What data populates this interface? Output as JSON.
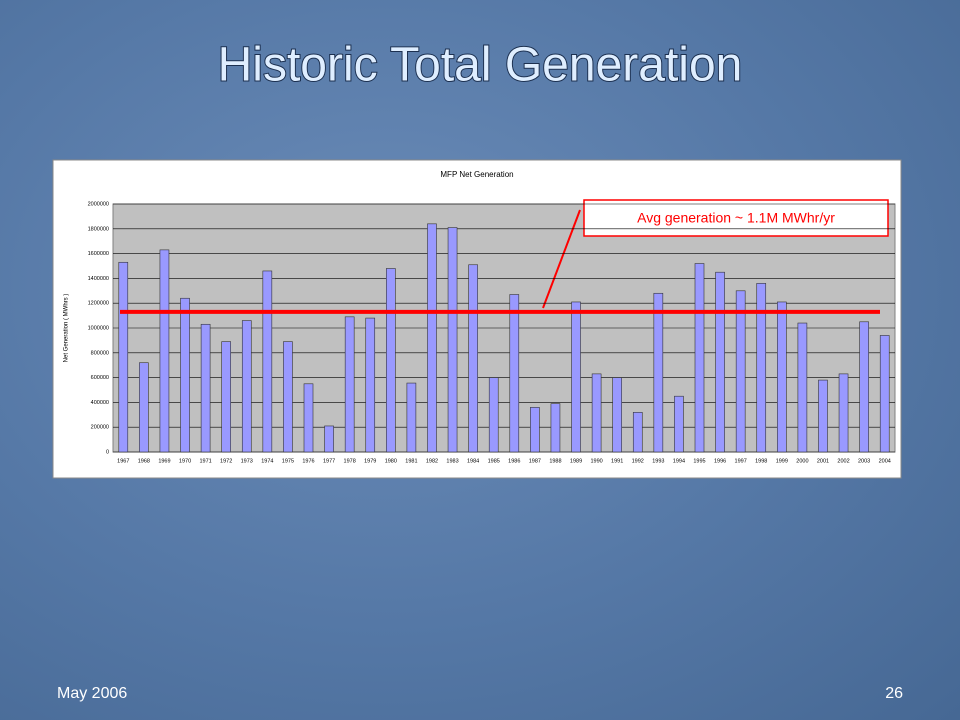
{
  "slide": {
    "title": "Historic Total Generation",
    "footer_date": "May 2006",
    "page_number": "26"
  },
  "chart_data": {
    "type": "bar",
    "title": "MFP Net Generation",
    "y_label": "Net Generation ( MWhrs )",
    "categories": [
      "1967",
      "1968",
      "1969",
      "1970",
      "1971",
      "1972",
      "1973",
      "1974",
      "1975",
      "1976",
      "1977",
      "1978",
      "1979",
      "1980",
      "1981",
      "1982",
      "1983",
      "1984",
      "1985",
      "1986",
      "1987",
      "1988",
      "1989",
      "1990",
      "1991",
      "1992",
      "1993",
      "1994",
      "1995",
      "1996",
      "1997",
      "1998",
      "1999",
      "2000",
      "2001",
      "2002",
      "2003",
      "2004"
    ],
    "values": [
      1530000,
      720000,
      1630000,
      1240000,
      1030000,
      890000,
      1060000,
      1460000,
      890000,
      550000,
      210000,
      1090000,
      1080000,
      1480000,
      556000,
      1840000,
      1810000,
      1510000,
      600000,
      1270000,
      360000,
      390000,
      1210000,
      630000,
      600000,
      320000,
      1280000,
      450000,
      1520000,
      1450000,
      1300000,
      1360000,
      1210000,
      1040000,
      580000,
      630000,
      1050000,
      940000
    ],
    "color": "#9999ff",
    "ylim": [
      0,
      2000000
    ],
    "yticks": [
      0,
      200000,
      400000,
      600000,
      800000,
      1000000,
      1200000,
      1400000,
      1600000,
      1800000,
      2000000
    ],
    "grid": true,
    "average_line": 1130000,
    "average_line_color": "#ff0000",
    "annotation": "Avg generation ~ 1.1M MWhr/yr"
  }
}
